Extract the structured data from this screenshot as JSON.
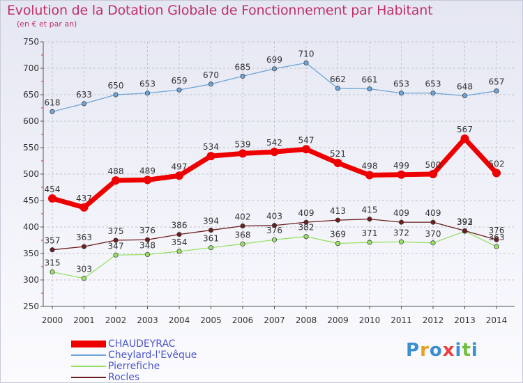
{
  "chart_data": {
    "type": "line",
    "title": "Evolution de la Dotation Globale de Fonctionnement par Habitant",
    "subtitle": "(en € et par an)",
    "x": [
      "2000",
      "2001",
      "2002",
      "2003",
      "2004",
      "2005",
      "2006",
      "2007",
      "2008",
      "2009",
      "2010",
      "2011",
      "2012",
      "2013",
      "2014"
    ],
    "ylim": [
      250,
      750
    ],
    "yticks": [
      "250",
      "300",
      "350",
      "400",
      "450",
      "500",
      "550",
      "600",
      "650",
      "700",
      "750"
    ],
    "series": [
      {
        "name": "CHAUDEYRAC",
        "color": "#ee0000",
        "values": [
          454,
          437,
          488,
          489,
          497,
          534,
          539,
          542,
          547,
          521,
          498,
          499,
          500,
          567,
          502
        ]
      },
      {
        "name": "Cheylard-l'Evêque",
        "color": "#6ea5d8",
        "values": [
          618,
          633,
          650,
          653,
          659,
          670,
          685,
          699,
          710,
          662,
          661,
          653,
          653,
          648,
          657
        ]
      },
      {
        "name": "Pierrefiche",
        "color": "#99e066",
        "values": [
          315,
          303,
          347,
          348,
          354,
          361,
          368,
          376,
          382,
          369,
          371,
          372,
          370,
          392,
          363
        ]
      },
      {
        "name": "Rocles",
        "color": "#6b1e1e",
        "values": [
          357,
          363,
          375,
          376,
          386,
          394,
          402,
          403,
          409,
          413,
          415,
          409,
          409,
          393,
          376
        ]
      }
    ]
  },
  "logo": {
    "text": "Proxiti"
  }
}
